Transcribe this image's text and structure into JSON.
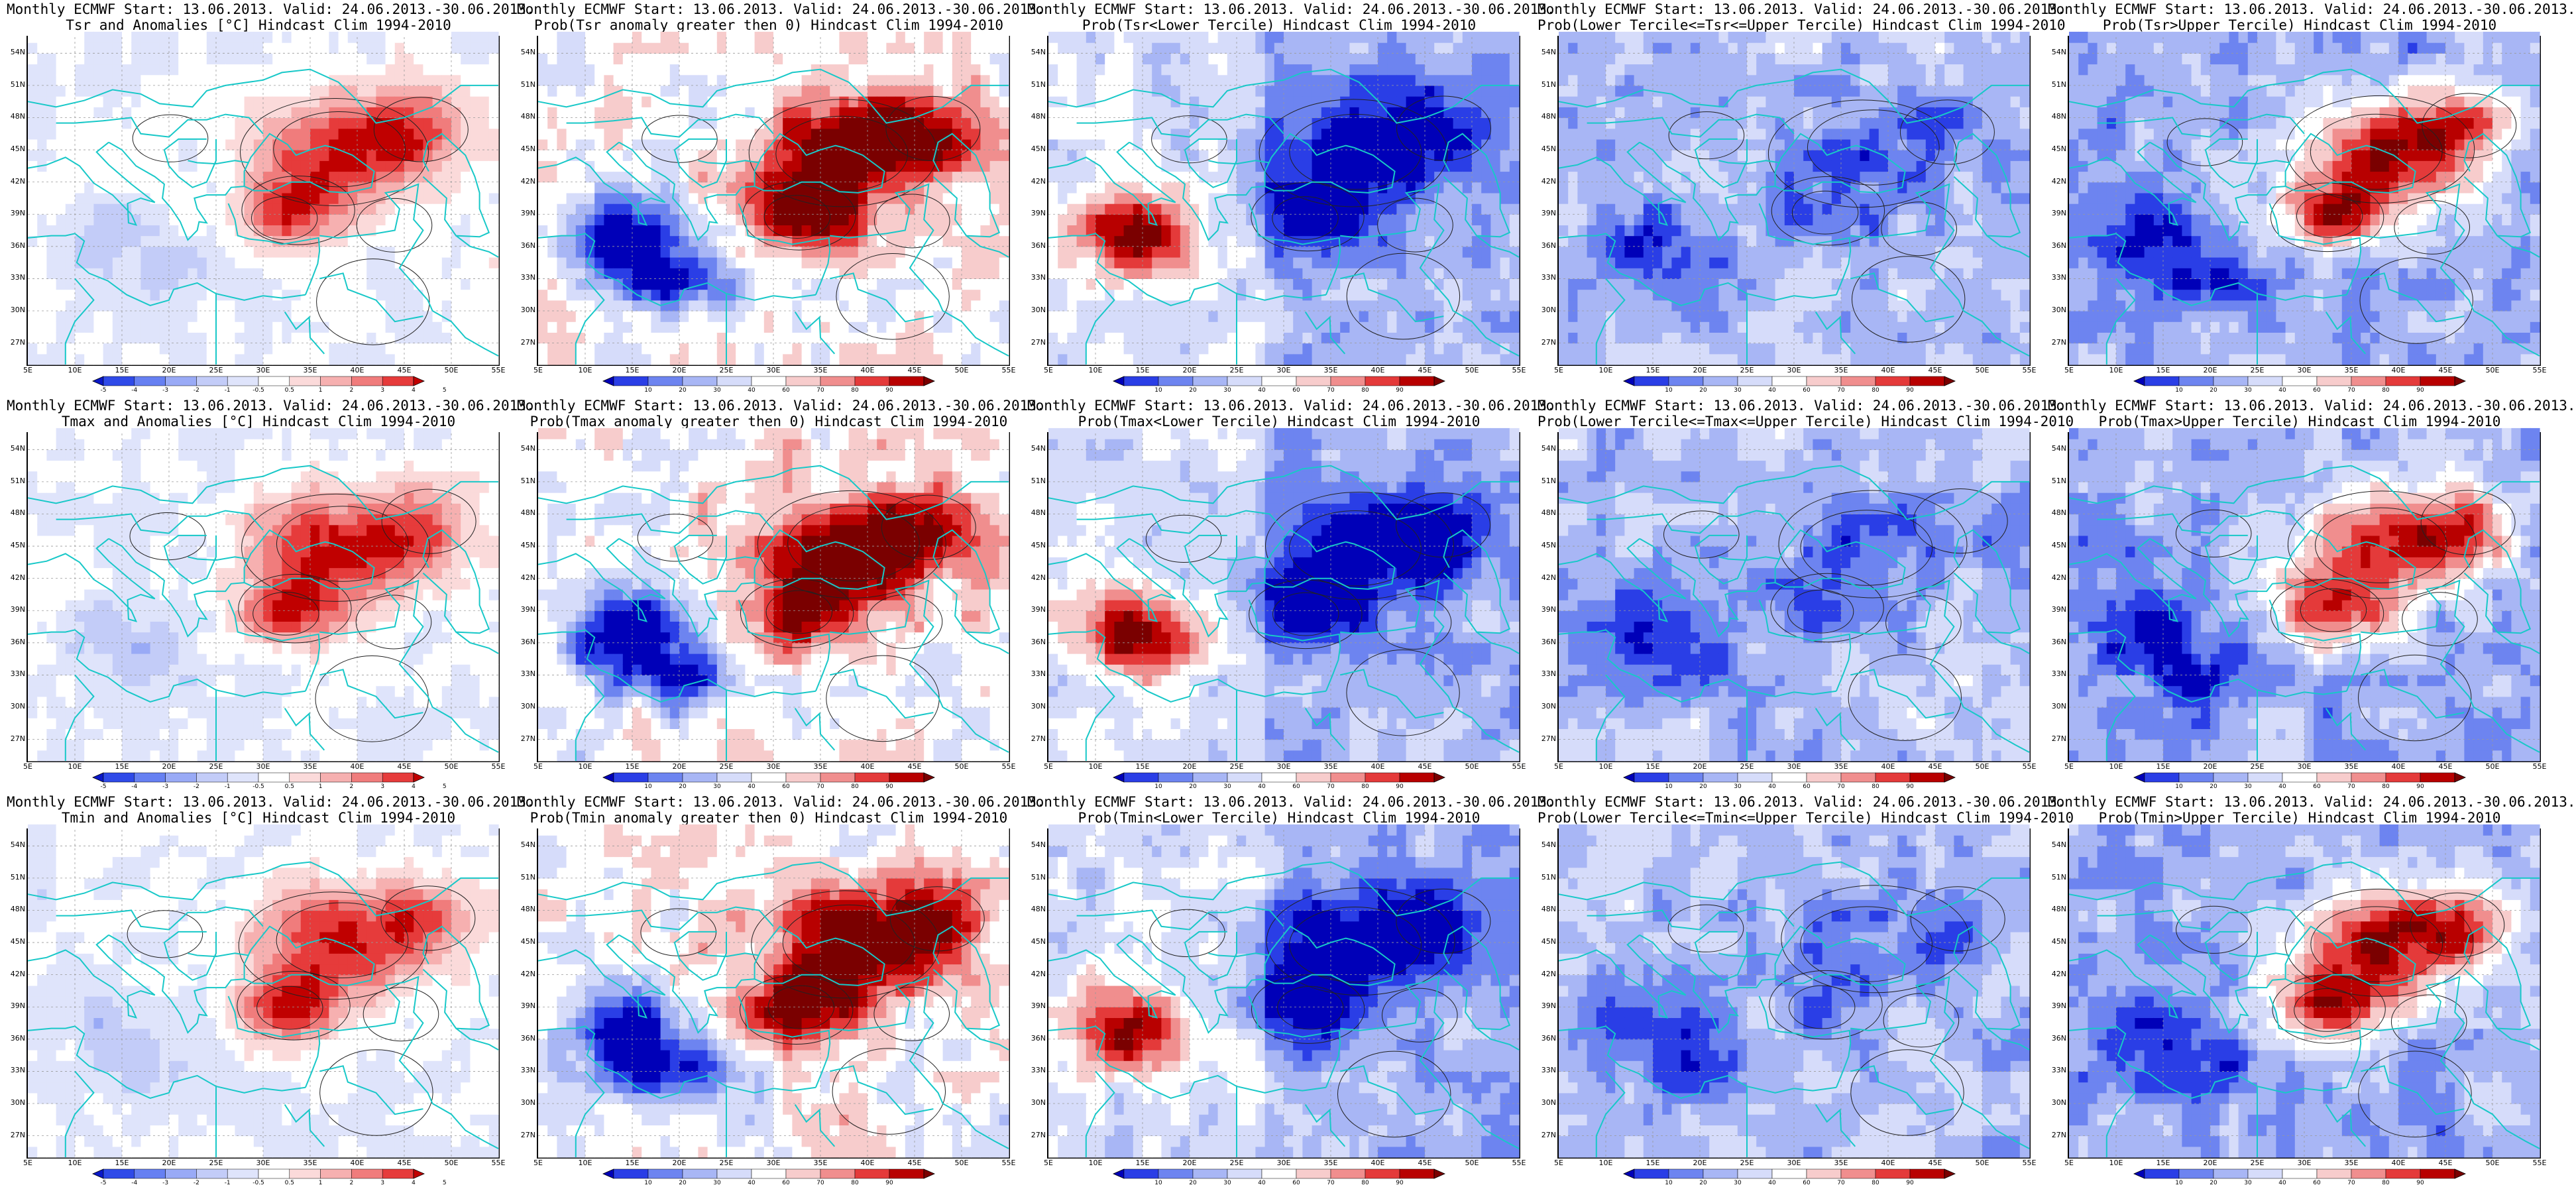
{
  "palette": {
    "anom": [
      "#0a18c8",
      "#2f4ae8",
      "#6680f2",
      "#99aaf6",
      "#c3ccf8",
      "#dfe4fb",
      "#ffffff",
      "#fbdada",
      "#f6b0b0",
      "#f07c7c",
      "#e63b3b",
      "#c00000"
    ],
    "prob": [
      "#0000b8",
      "#2a3ee6",
      "#6d84f0",
      "#a8b6f5",
      "#d6dcfa",
      "#ffffff",
      "#f7cccc",
      "#f08e8e",
      "#e43a3a",
      "#b80000",
      "#7a0000"
    ]
  },
  "colorbar_ticks": {
    "anom": [
      "-5",
      "-4",
      "-3",
      "-2",
      "-1",
      "-0.5",
      "0.5",
      "1",
      "2",
      "3",
      "4",
      "5"
    ],
    "prob": [
      "10",
      "20",
      "30",
      "40",
      "60",
      "70",
      "80",
      "90"
    ]
  },
  "axes": {
    "lat_ticks": [
      "54N",
      "51N",
      "48N",
      "45N",
      "42N",
      "39N",
      "36N",
      "33N",
      "30N",
      "27N"
    ],
    "lon_ticks": [
      "5E",
      "10E",
      "15E",
      "20E",
      "25E",
      "30E",
      "35E",
      "40E",
      "45E",
      "50E",
      "55E"
    ]
  },
  "panels": [
    {
      "title1": "Monthly ECMWF Start: 13.06.2013. Valid: 24.06.2013.-30.06.2013.",
      "title2": "Tsr and Anomalies [°C] Hindcast Clim 1994-2010",
      "scale": "anom",
      "pattern": "anomaly"
    },
    {
      "title1": "Monthly ECMWF Start: 13.06.2013. Valid: 24.06.2013.-30.06.2013.",
      "title2": "Prob(Tsr anomaly greater then 0) Hindcast Clim 1994-2010",
      "scale": "prob",
      "pattern": "greater"
    },
    {
      "title1": "Monthly ECMWF Start: 13.06.2013. Valid: 24.06.2013.-30.06.2013.",
      "title2": "Prob(Tsr<Lower Tercile) Hindcast Clim 1994-2010",
      "scale": "prob",
      "pattern": "lower"
    },
    {
      "title1": "Monthly ECMWF Start: 13.06.2013. Valid: 24.06.2013.-30.06.2013.",
      "title2": "Prob(Lower Tercile<=Tsr<=Upper Tercile) Hindcast Clim 1994-2010",
      "scale": "prob",
      "pattern": "middle"
    },
    {
      "title1": "Monthly ECMWF Start: 13.06.2013. Valid: 24.06.2013.-30.06.2013.",
      "title2": "Prob(Tsr>Upper Tercile) Hindcast Clim 1994-2010",
      "scale": "prob",
      "pattern": "upper"
    },
    {
      "title1": "Monthly ECMWF Start: 13.06.2013. Valid: 24.06.2013.-30.06.2013.",
      "title2": "Tmax and Anomalies [°C] Hindcast Clim 1994-2010",
      "scale": "anom",
      "pattern": "anomaly"
    },
    {
      "title1": "Monthly ECMWF Start: 13.06.2013. Valid: 24.06.2013.-30.06.2013.",
      "title2": "Prob(Tmax anomaly greater then 0) Hindcast Clim 1994-2010",
      "scale": "prob",
      "pattern": "greater"
    },
    {
      "title1": "Monthly ECMWF Start: 13.06.2013. Valid: 24.06.2013.-30.06.2013.",
      "title2": "Prob(Tmax<Lower Tercile) Hindcast Clim 1994-2010",
      "scale": "prob",
      "pattern": "lower"
    },
    {
      "title1": "Monthly ECMWF Start: 13.06.2013. Valid: 24.06.2013.-30.06.2013.",
      "title2": "Prob(Lower Tercile<=Tmax<=Upper Tercile) Hindcast Clim 1994-2010",
      "scale": "prob",
      "pattern": "middle"
    },
    {
      "title1": "Monthly ECMWF Start: 13.06.2013. Valid: 24.06.2013.-30.06.2013.",
      "title2": "Prob(Tmax>Upper Tercile) Hindcast Clim 1994-2010",
      "scale": "prob",
      "pattern": "upper"
    },
    {
      "title1": "Monthly ECMWF Start: 13.06.2013. Valid: 24.06.2013.-30.06.2013.",
      "title2": "Tmin and Anomalies [°C] Hindcast Clim 1994-2010",
      "scale": "anom",
      "pattern": "anomaly"
    },
    {
      "title1": "Monthly ECMWF Start: 13.06.2013. Valid: 24.06.2013.-30.06.2013.",
      "title2": "Prob(Tmin anomaly greater then 0) Hindcast Clim 1994-2010",
      "scale": "prob",
      "pattern": "greater"
    },
    {
      "title1": "Monthly ECMWF Start: 13.06.2013. Valid: 24.06.2013.-30.06.2013.",
      "title2": "Prob(Tmin<Lower Tercile) Hindcast Clim 1994-2010",
      "scale": "prob",
      "pattern": "lower"
    },
    {
      "title1": "Monthly ECMWF Start: 13.06.2013. Valid: 24.06.2013.-30.06.2013.",
      "title2": "Prob(Lower Tercile<=Tmin<=Upper Tercile) Hindcast Clim 1994-2010",
      "scale": "prob",
      "pattern": "middle"
    },
    {
      "title1": "Monthly ECMWF Start: 13.06.2013. Valid: 24.06.2013.-30.06.2013.",
      "title2": "Prob(Tmin>Upper Tercile) Hindcast Clim 1994-2010",
      "scale": "prob",
      "pattern": "upper"
    }
  ]
}
